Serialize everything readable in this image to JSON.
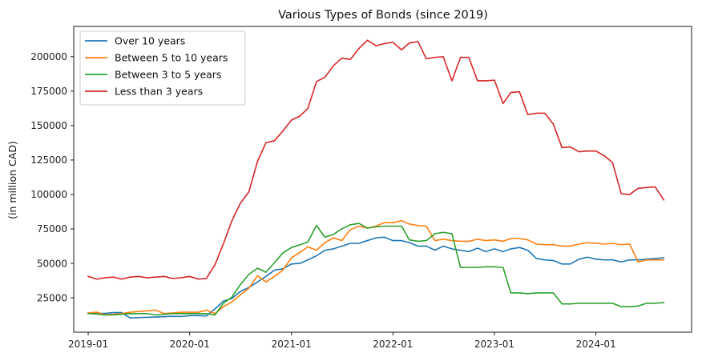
{
  "chart_data": {
    "type": "line",
    "title": "Various Types of Bonds (since 2019)",
    "xlabel": "",
    "ylabel": "(in million CAD)",
    "xlim": [
      "2018-11-10",
      "2024-12-10"
    ],
    "ylim": [
      0,
      222000
    ],
    "x_tick_labels": [
      "2019-01",
      "2020-01",
      "2021-01",
      "2022-01",
      "2023-01",
      "2024-01"
    ],
    "y_ticks": [
      25000,
      50000,
      75000,
      100000,
      125000,
      150000,
      175000,
      200000
    ],
    "y_tick_labels": [
      "25000",
      "50000",
      "75000",
      "100000",
      "125000",
      "150000",
      "175000",
      "200000"
    ],
    "grid": false,
    "legend_position": "upper-left",
    "x": [
      "2019-01",
      "2019-02",
      "2019-03",
      "2019-04",
      "2019-05",
      "2019-06",
      "2019-07",
      "2019-08",
      "2019-09",
      "2019-10",
      "2019-11",
      "2019-12",
      "2020-01",
      "2020-02",
      "2020-03",
      "2020-04",
      "2020-05",
      "2020-06",
      "2020-07",
      "2020-08",
      "2020-09",
      "2020-10",
      "2020-11",
      "2020-12",
      "2021-01",
      "2021-02",
      "2021-03",
      "2021-04",
      "2021-05",
      "2021-06",
      "2021-07",
      "2021-08",
      "2021-09",
      "2021-10",
      "2021-11",
      "2021-12",
      "2022-01",
      "2022-02",
      "2022-03",
      "2022-04",
      "2022-05",
      "2022-06",
      "2022-07",
      "2022-08",
      "2022-09",
      "2022-10",
      "2022-11",
      "2022-12",
      "2023-01",
      "2023-02",
      "2023-03",
      "2023-04",
      "2023-05",
      "2023-06",
      "2023-07",
      "2023-08",
      "2023-09",
      "2023-10",
      "2023-11",
      "2023-12",
      "2024-01",
      "2024-02",
      "2024-03",
      "2024-04",
      "2024-05",
      "2024-06",
      "2024-07",
      "2024-08",
      "2024-09"
    ],
    "series": [
      {
        "name": "Over 10 years",
        "color": "#1f77b4",
        "values": [
          13500,
          13700,
          13600,
          14200,
          14300,
          10300,
          10600,
          10800,
          11000,
          11300,
          11500,
          11400,
          12000,
          12000,
          11800,
          17000,
          22500,
          24500,
          29500,
          32500,
          36500,
          40500,
          45000,
          46000,
          49500,
          50000,
          52500,
          55500,
          59500,
          60500,
          62500,
          64500,
          64500,
          66500,
          68500,
          69000,
          66500,
          66500,
          65000,
          62500,
          62500,
          59500,
          62500,
          60500,
          59500,
          58500,
          61000,
          58500,
          60500,
          58500,
          60500,
          61500,
          59500,
          53500,
          52500,
          52000,
          49500,
          49500,
          53000,
          54500,
          53000,
          52500,
          52500,
          51000,
          52500,
          52500,
          53000,
          53500,
          54000
        ]
      },
      {
        "name": "Between 5 to 10 years",
        "color": "#ff7f0e",
        "values": [
          14000,
          14500,
          12700,
          13000,
          13500,
          14500,
          15000,
          15500,
          16000,
          13500,
          14000,
          14500,
          14500,
          14500,
          16000,
          13500,
          18500,
          22000,
          27000,
          32000,
          41000,
          36500,
          40500,
          45000,
          54000,
          58000,
          62000,
          59500,
          65000,
          68500,
          66500,
          74500,
          77000,
          75500,
          77000,
          79500,
          79500,
          81000,
          78500,
          77500,
          77000,
          66500,
          67500,
          66500,
          66000,
          66000,
          67500,
          66500,
          67000,
          66000,
          68000,
          68000,
          67000,
          64000,
          63500,
          63500,
          62500,
          62500,
          64000,
          65000,
          64500,
          64000,
          64500,
          63500,
          64000,
          51000,
          52500,
          52500,
          52500
        ]
      },
      {
        "name": "Between 3 to 5 years",
        "color": "#2ca02c",
        "values": [
          13500,
          13200,
          12500,
          12500,
          13000,
          13500,
          13500,
          13500,
          12500,
          13000,
          13500,
          13500,
          13500,
          13500,
          13500,
          12500,
          21000,
          25500,
          34500,
          42000,
          46500,
          43500,
          50500,
          57500,
          61500,
          63500,
          65500,
          77500,
          69000,
          71000,
          75000,
          78000,
          79000,
          75500,
          76500,
          77000,
          77000,
          77000,
          67000,
          66000,
          66500,
          71500,
          72500,
          71500,
          47000,
          47000,
          47000,
          47500,
          47500,
          47000,
          28500,
          28500,
          28000,
          28500,
          28500,
          28500,
          20500,
          20500,
          21000,
          21000,
          21000,
          21000,
          21000,
          18500,
          18500,
          19000,
          21000,
          21000,
          21500
        ]
      },
      {
        "name": "Less than 3 years",
        "color": "#d62728",
        "values": [
          40500,
          38500,
          39500,
          40000,
          38500,
          40000,
          40500,
          39500,
          40000,
          40500,
          39000,
          39500,
          40500,
          38500,
          39000,
          49000,
          64000,
          81000,
          93500,
          102000,
          124000,
          137500,
          139000,
          146000,
          154000,
          157000,
          162500,
          182000,
          185000,
          193500,
          199000,
          198000,
          206000,
          212000,
          208000,
          209500,
          210500,
          205000,
          210000,
          211000,
          198500,
          199500,
          200000,
          182500,
          199500,
          199500,
          182500,
          182500,
          183000,
          166000,
          174000,
          174500,
          158000,
          159000,
          159000,
          151000,
          134000,
          134500,
          131000,
          131500,
          131500,
          128000,
          123000,
          100500,
          100000,
          104500,
          105000,
          105500,
          96000
        ]
      }
    ]
  }
}
